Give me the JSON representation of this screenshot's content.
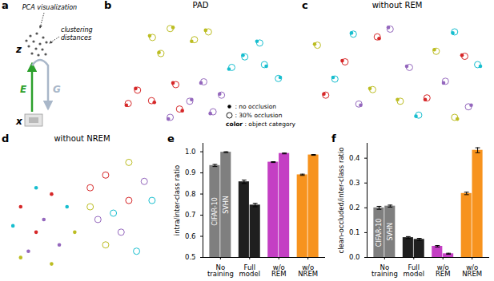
{
  "diagram": {
    "panel": "a",
    "top_label": "PCA visualization",
    "right_label": "clustering distances",
    "latent": "z",
    "input": "x",
    "encoder": "E",
    "generator": "G"
  },
  "chart_data": [
    {
      "type": "scatter",
      "panel": "b",
      "title": "PAD",
      "tick_labels": false,
      "xlim": [
        -1,
        1
      ],
      "ylim": [
        -1,
        1
      ],
      "colors": [
        "#d62728",
        "#9467bd",
        "#17becf",
        "#bcbd22"
      ],
      "x": [
        -0.55,
        -0.3,
        -0.1,
        -0.45,
        0.05,
        0.45,
        0.7,
        0.6,
        0.85,
        0.3,
        -0.7,
        -0.5,
        -0.3,
        -0.8,
        -0.2,
        -0.1,
        0.1,
        -0.35,
        0.2,
        0.0,
        -0.52,
        -0.33,
        -0.07,
        -0.43,
        0.08,
        0.47,
        0.68,
        0.63,
        0.83,
        0.33,
        -0.68,
        -0.53,
        -0.27,
        -0.78,
        -0.23,
        -0.12,
        0.13,
        -0.33,
        0.22,
        0.03
      ],
      "y": [
        0.65,
        0.8,
        0.55,
        0.35,
        0.75,
        0.3,
        0.1,
        0.55,
        -0.1,
        0.05,
        -0.3,
        -0.55,
        -0.2,
        -0.6,
        -0.7,
        -0.5,
        -0.75,
        -0.85,
        -0.4,
        -0.2,
        0.62,
        0.78,
        0.58,
        0.33,
        0.72,
        0.27,
        0.13,
        0.52,
        -0.12,
        0.08,
        -0.33,
        -0.52,
        -0.23,
        -0.57,
        -0.67,
        -0.53,
        -0.72,
        -0.82,
        -0.42,
        -0.18
      ],
      "class": [
        3,
        3,
        3,
        3,
        3,
        2,
        2,
        2,
        2,
        2,
        0,
        0,
        0,
        0,
        0,
        1,
        1,
        1,
        1,
        1,
        3,
        3,
        3,
        3,
        3,
        2,
        2,
        2,
        2,
        2,
        0,
        0,
        0,
        0,
        0,
        1,
        1,
        1,
        1,
        1
      ],
      "occluded": [
        false,
        false,
        false,
        false,
        false,
        false,
        false,
        false,
        false,
        false,
        false,
        false,
        false,
        false,
        false,
        false,
        false,
        false,
        false,
        false,
        true,
        true,
        true,
        true,
        true,
        true,
        true,
        true,
        true,
        true,
        true,
        true,
        true,
        true,
        true,
        true,
        true,
        true,
        true,
        true
      ],
      "legend": "lower right",
      "legend_entries": [
        {
          "marker": "dot",
          "label": ": no occlusion"
        },
        {
          "marker": "circle",
          "label": ": 30% occlusion"
        },
        {
          "symbol": "color",
          "label": ": object category"
        }
      ]
    },
    {
      "type": "scatter",
      "panel": "c",
      "title": "without REM",
      "tick_labels": false,
      "xlim": [
        -1,
        1
      ],
      "ylim": [
        -1,
        1
      ],
      "colors": [
        "#d62728",
        "#9467bd",
        "#17becf",
        "#bcbd22"
      ],
      "x": [
        -0.6,
        0.3,
        -0.2,
        0.7,
        -0.8,
        0.1,
        -0.4,
        0.5,
        -0.1,
        0.8,
        -0.5,
        0.6,
        0.2,
        -0.7,
        0.9,
        -0.3,
        0.4,
        -0.9,
        0.0,
        0.65,
        -0.57,
        0.32,
        -0.22,
        0.73,
        -0.78,
        0.13,
        -0.42,
        0.52,
        -0.08,
        0.77,
        -0.48,
        0.62,
        0.23,
        -0.68,
        0.87,
        -0.27,
        0.42,
        -0.87,
        0.03,
        0.62
      ],
      "y": [
        0.2,
        -0.5,
        0.6,
        0.3,
        -0.4,
        0.1,
        -0.6,
        -0.2,
        0.8,
        -0.6,
        0.7,
        0.7,
        -0.8,
        -0.1,
        0.1,
        -0.3,
        0.4,
        0.5,
        -0.5,
        -0.85,
        0.18,
        -0.47,
        0.63,
        0.28,
        -0.42,
        0.08,
        -0.58,
        -0.17,
        0.77,
        -0.63,
        0.68,
        0.72,
        -0.78,
        -0.13,
        0.13,
        -0.32,
        0.37,
        0.48,
        -0.53,
        -0.82
      ],
      "class": [
        0,
        0,
        0,
        0,
        0,
        1,
        1,
        1,
        1,
        1,
        2,
        2,
        2,
        2,
        2,
        3,
        3,
        3,
        3,
        3,
        0,
        0,
        0,
        0,
        0,
        1,
        1,
        1,
        1,
        1,
        2,
        2,
        2,
        2,
        2,
        3,
        3,
        3,
        3,
        3
      ],
      "occluded": [
        false,
        false,
        false,
        false,
        false,
        false,
        false,
        false,
        false,
        false,
        false,
        false,
        false,
        false,
        false,
        false,
        false,
        false,
        false,
        false,
        true,
        true,
        true,
        true,
        true,
        true,
        true,
        true,
        true,
        true,
        true,
        true,
        true,
        true,
        true,
        true,
        true,
        true,
        true,
        true
      ]
    },
    {
      "type": "scatter",
      "panel": "d",
      "title": "without NREM",
      "tick_labels": false,
      "xlim": [
        -1,
        1
      ],
      "ylim": [
        -1,
        1
      ],
      "colors": [
        "#d62728",
        "#9467bd",
        "#17becf",
        "#bcbd22"
      ],
      "x": [
        -0.8,
        -0.6,
        -0.4,
        -0.7,
        -0.3,
        -0.5,
        -0.9,
        -0.2,
        -0.6,
        -0.4,
        -0.1,
        -0.8,
        0.3,
        0.6,
        0.1,
        0.5,
        0.8,
        0.2,
        0.7,
        0.4,
        0.9,
        0.3,
        0.6,
        0.1
      ],
      "y": [
        0.1,
        -0.3,
        0.3,
        -0.6,
        -0.5,
        -0.1,
        -0.2,
        0.1,
        0.4,
        -0.8,
        -0.3,
        -0.7,
        0.6,
        0.2,
        0.4,
        -0.3,
        0.5,
        -0.1,
        -0.6,
        0.0,
        0.2,
        -0.5,
        0.8,
        0.1
      ],
      "class": [
        0,
        0,
        0,
        1,
        1,
        1,
        2,
        2,
        2,
        3,
        3,
        3,
        0,
        0,
        0,
        1,
        1,
        1,
        2,
        2,
        2,
        3,
        3,
        3
      ],
      "occluded": [
        false,
        false,
        false,
        false,
        false,
        false,
        false,
        false,
        false,
        false,
        false,
        false,
        true,
        true,
        true,
        true,
        true,
        true,
        true,
        true,
        true,
        true,
        true,
        true
      ]
    },
    {
      "type": "bar",
      "panel": "e",
      "ylabel": "intra/inter-class ratio",
      "categories": [
        "No training",
        "Full model",
        "w/o REM",
        "w/o NREM"
      ],
      "colors": [
        "#7f7f7f",
        "#1f1f1f",
        "#c43fc4",
        "#f7931e"
      ],
      "series": [
        {
          "name": "CIFAR-10",
          "values": [
            0.935,
            0.858,
            0.951,
            0.891
          ],
          "errors": [
            0.005,
            0.008,
            0.002,
            0.003
          ]
        },
        {
          "name": "SVHN",
          "values": [
            0.998,
            0.748,
            0.992,
            0.985
          ],
          "errors": [
            0.002,
            0.008,
            0.002,
            0.002
          ]
        }
      ],
      "ylim": [
        0.5,
        1.04
      ],
      "yticks": [
        0.5,
        0.6,
        0.7,
        0.8,
        0.9,
        {
          "value": 1,
          "label": "1.0"
        }
      ]
    },
    {
      "type": "bar",
      "panel": "f",
      "ylabel": "clean-occluded/inter-class ratio",
      "categories": [
        "No training",
        "Full model",
        "w/o REM",
        "w/o NREM"
      ],
      "colors": [
        "#7f7f7f",
        "#1f1f1f",
        "#c43fc4",
        "#f7931e"
      ],
      "series": [
        {
          "name": "CIFAR-10",
          "values": [
            0.2,
            0.08,
            0.045,
            0.258
          ],
          "errors": [
            0.006,
            0.004,
            0.003,
            0.005
          ]
        },
        {
          "name": "SVHN",
          "values": [
            0.207,
            0.073,
            0.015,
            0.432
          ],
          "errors": [
            0.004,
            0.004,
            0.002,
            0.01
          ]
        }
      ],
      "ylim": [
        0,
        0.46
      ],
      "yticks": [
        {
          "value": 0,
          "label": "0.0"
        },
        0.1,
        0.2,
        0.3,
        0.4
      ]
    }
  ]
}
